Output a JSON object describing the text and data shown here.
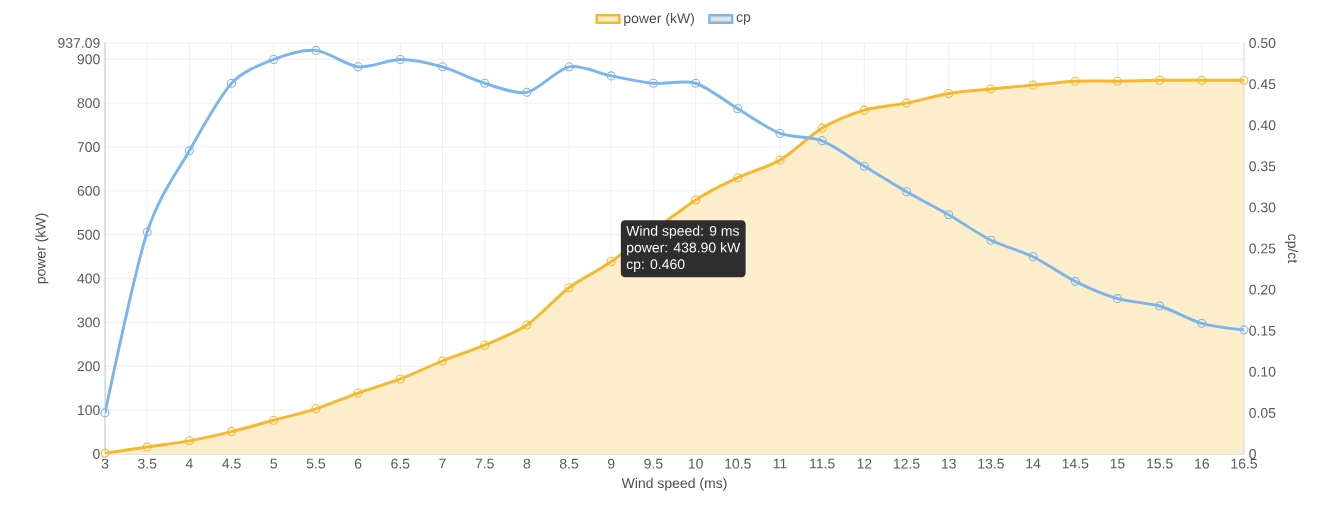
{
  "chart_data": {
    "type": "area",
    "x": [
      3,
      3.5,
      4,
      4.5,
      5,
      5.5,
      6,
      6.5,
      7,
      7.5,
      8,
      8.5,
      9,
      9.5,
      10,
      10.5,
      11,
      11.5,
      12,
      12.5,
      13,
      13.5,
      14,
      14.5,
      15,
      15.5,
      16,
      16.5
    ],
    "series": [
      {
        "name": "power (kW)",
        "color": "#f5b82e",
        "values": [
          2,
          16,
          30,
          51,
          77,
          103,
          139,
          171,
          212,
          248,
          294,
          379,
          438.9,
          null,
          579,
          630,
          670,
          743,
          784,
          800,
          822,
          832,
          841,
          850,
          850,
          852,
          852,
          852
        ]
      },
      {
        "name": "cp",
        "type": "line",
        "axis": "y2",
        "color": "#7cb5ec",
        "values": [
          0.05,
          0.27,
          0.369,
          0.451,
          0.48,
          0.491,
          0.471,
          0.48,
          0.471,
          0.451,
          0.44,
          0.471,
          0.46,
          0.451,
          0.451,
          0.42,
          0.39,
          0.381,
          0.35,
          0.319,
          0.291,
          0.26,
          0.24,
          0.21,
          0.189,
          0.18,
          0.159,
          0.151
        ]
      }
    ],
    "xlabel": "Wind speed (ms)",
    "ylabel": "power (kW)",
    "y2label": "cp/ct",
    "xlim": [
      3,
      16.5
    ],
    "xticks": [
      3,
      3.5,
      4,
      4.5,
      5,
      5.5,
      6,
      6.5,
      7,
      7.5,
      8,
      8.5,
      9,
      9.5,
      10,
      10.5,
      11,
      11.5,
      12,
      12.5,
      13,
      13.5,
      14,
      14.5,
      15,
      15.5,
      16,
      16.5
    ],
    "ylim": [
      0,
      937.09
    ],
    "yticks": [
      0,
      100,
      200,
      300,
      400,
      500,
      600,
      700,
      800,
      900,
      937.09
    ],
    "y2lim": [
      0,
      0.5
    ],
    "y2ticks": [
      0,
      {
        "value": 0.05,
        "label": "0.05"
      },
      {
        "value": 0.1,
        "label": "0.10"
      },
      {
        "value": 0.15,
        "label": "0.15"
      },
      {
        "value": 0.2,
        "label": "0.20"
      },
      {
        "value": 0.25,
        "label": "0.25"
      },
      {
        "value": 0.3,
        "label": "0.30"
      },
      {
        "value": 0.35,
        "label": "0.35"
      },
      {
        "value": 0.4,
        "label": "0.40"
      },
      {
        "value": 0.45,
        "label": "0.45"
      },
      {
        "value": 0.5,
        "label": "0.50"
      }
    ],
    "grid": true,
    "legend": "top",
    "marker": "circle",
    "annotations": [
      {
        "text": "Wind speed: 9 ms",
        "x": 9,
        "y": 438.9
      },
      "power: 438.90 kW",
      "cp: 0.460"
    ]
  }
}
